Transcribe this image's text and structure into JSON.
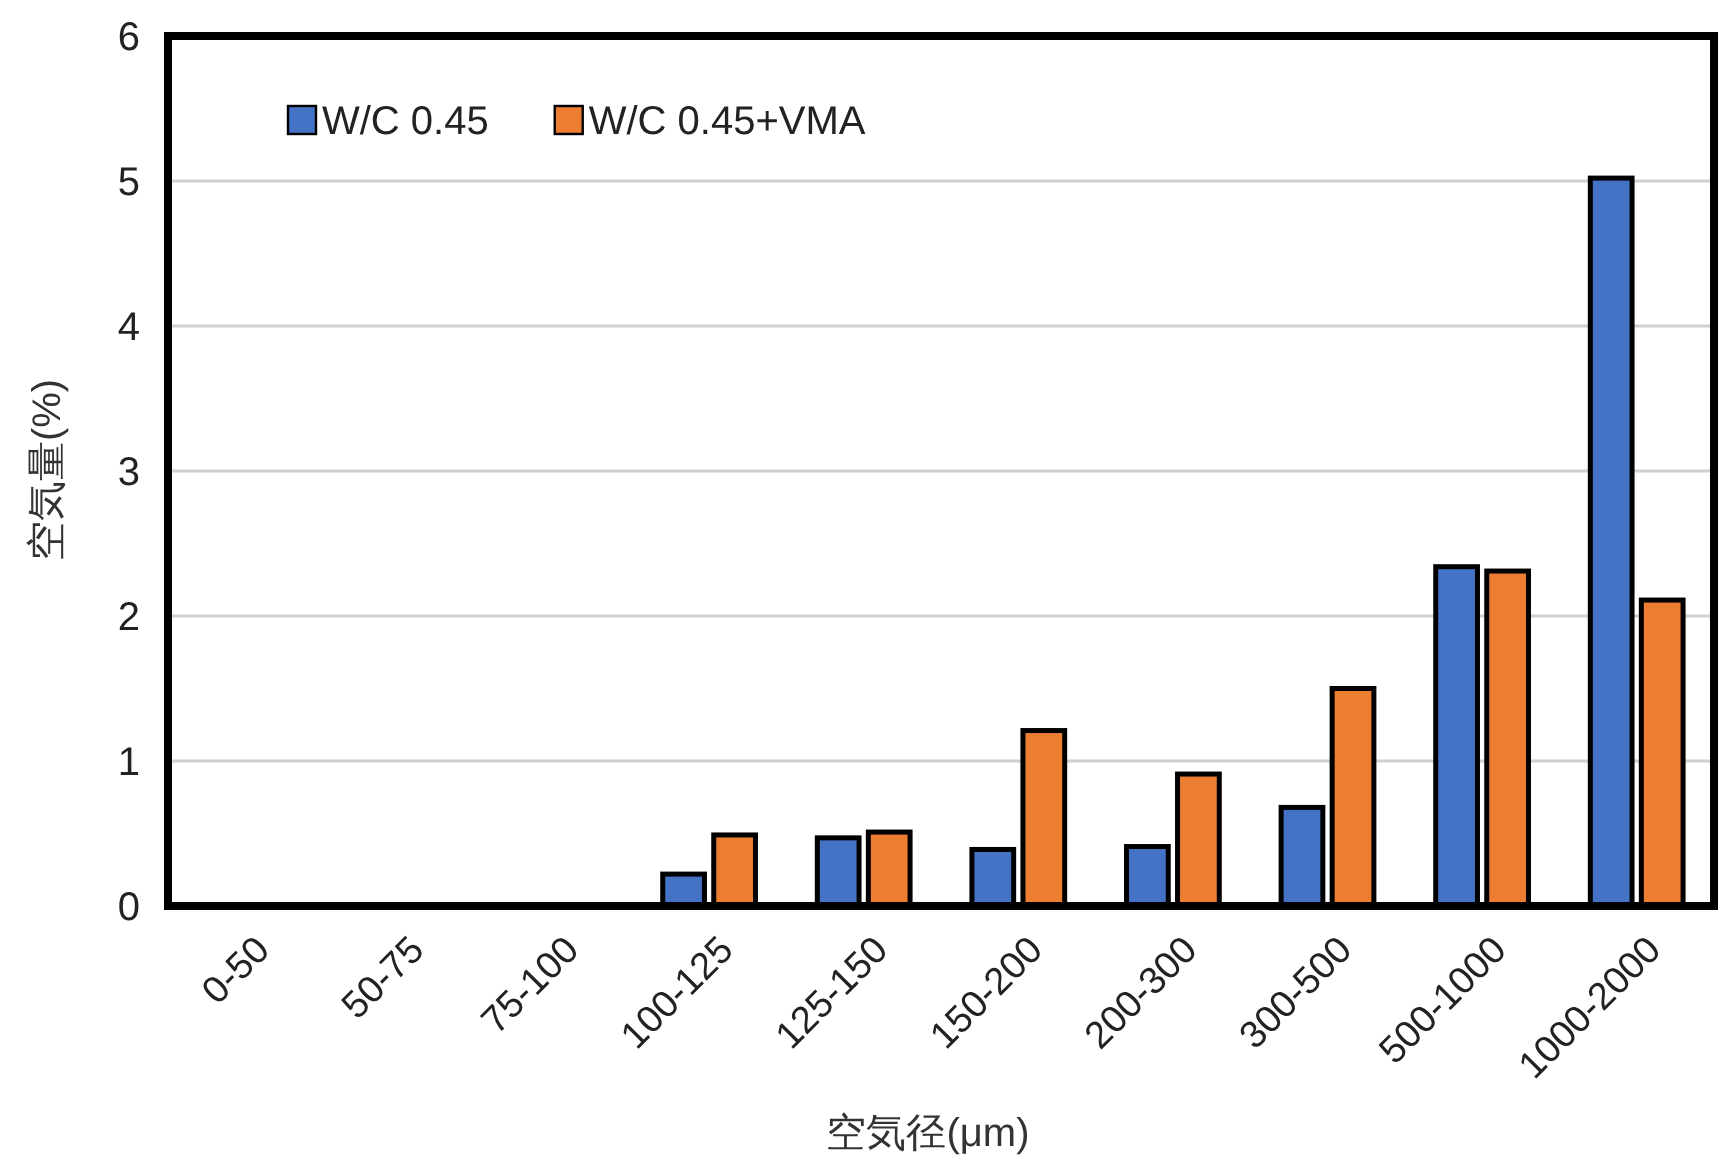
{
  "chart_data": {
    "type": "bar",
    "xlabel": "空気径(μm)",
    "ylabel": "空気量(%)",
    "categories": [
      "0-50",
      "50-75",
      "75-100",
      "100-125",
      "125-150",
      "150-200",
      "200-300",
      "300-500",
      "500-1000",
      "1000-2000"
    ],
    "series": [
      {
        "name": "W/C 0.45",
        "color": "#4472c4",
        "values": [
          0,
          0,
          0,
          0.22,
          0.47,
          0.39,
          0.41,
          0.68,
          2.34,
          5.02
        ]
      },
      {
        "name": "W/C 0.45+VMA",
        "color": "#ed7d31",
        "values": [
          0,
          0,
          0,
          0.49,
          0.51,
          1.21,
          0.91,
          1.5,
          2.31,
          2.11
        ]
      }
    ],
    "ylim": [
      0,
      6
    ],
    "yticks": [
      0,
      1,
      2,
      3,
      4,
      5,
      6
    ],
    "grid": "y",
    "legend": "top left"
  }
}
